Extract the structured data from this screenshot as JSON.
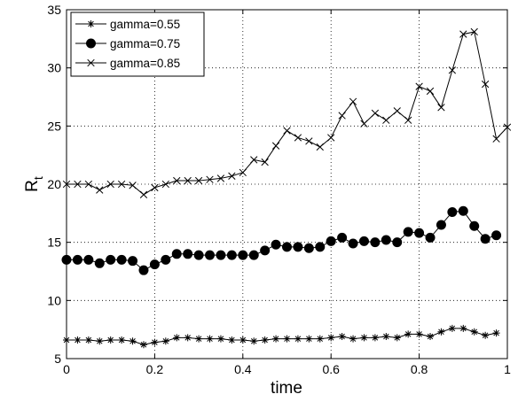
{
  "chart_data": {
    "type": "line",
    "title": "",
    "xlabel": "time",
    "ylabel": "R",
    "ylabel_subscript": "t",
    "xlim": [
      0,
      1
    ],
    "ylim": [
      5,
      35
    ],
    "xticks": [
      0,
      0.2,
      0.4,
      0.6,
      0.8,
      1
    ],
    "yticks": [
      5,
      10,
      15,
      20,
      25,
      30,
      35
    ],
    "xtick_labels": [
      "0",
      "0.2",
      "0.4",
      "0.6",
      "0.8",
      "1"
    ],
    "ytick_labels": [
      "5",
      "10",
      "15",
      "20",
      "25",
      "30",
      "35"
    ],
    "grid": true,
    "legend_position": "top-left",
    "x": [
      0,
      0.025,
      0.05,
      0.075,
      0.1,
      0.125,
      0.15,
      0.175,
      0.2,
      0.225,
      0.25,
      0.275,
      0.3,
      0.325,
      0.35,
      0.375,
      0.4,
      0.425,
      0.45,
      0.475,
      0.5,
      0.525,
      0.55,
      0.575,
      0.6,
      0.625,
      0.65,
      0.675,
      0.7,
      0.725,
      0.75,
      0.775,
      0.8,
      0.825,
      0.85,
      0.875,
      0.9,
      0.925,
      0.95,
      0.975
    ],
    "series": [
      {
        "name": "gamma=0.55",
        "marker": "asterisk",
        "values": [
          6.6,
          6.6,
          6.6,
          6.5,
          6.6,
          6.6,
          6.5,
          6.2,
          6.4,
          6.5,
          6.8,
          6.8,
          6.7,
          6.7,
          6.7,
          6.6,
          6.6,
          6.5,
          6.6,
          6.7,
          6.7,
          6.7,
          6.7,
          6.7,
          6.8,
          6.9,
          6.7,
          6.8,
          6.8,
          6.9,
          6.8,
          7.1,
          7.1,
          6.9,
          7.3,
          7.6,
          7.6,
          7.3,
          7.0,
          7.2
        ]
      },
      {
        "name": "gamma=0.75",
        "marker": "filled-circle",
        "values": [
          13.5,
          13.5,
          13.5,
          13.2,
          13.5,
          13.5,
          13.4,
          12.6,
          13.1,
          13.5,
          14.0,
          14.0,
          13.9,
          13.9,
          13.9,
          13.9,
          13.9,
          13.9,
          14.3,
          14.8,
          14.6,
          14.6,
          14.5,
          14.6,
          15.1,
          15.4,
          14.9,
          15.1,
          15.0,
          15.2,
          15.0,
          15.9,
          15.8,
          15.4,
          16.5,
          17.6,
          17.7,
          16.4,
          15.3,
          15.6
        ]
      },
      {
        "name": "gamma=0.85",
        "marker": "x",
        "values": [
          20.0,
          20.0,
          20.0,
          19.5,
          20.0,
          20.0,
          19.9,
          19.1,
          19.7,
          20.0,
          20.3,
          20.3,
          20.3,
          20.4,
          20.5,
          20.7,
          21.0,
          22.1,
          21.9,
          23.3,
          24.6,
          24.0,
          23.7,
          23.2,
          24.0,
          25.9,
          27.1,
          25.2,
          26.1,
          25.5,
          26.3,
          25.5,
          28.4,
          28.0,
          26.6,
          29.8,
          32.9,
          33.1,
          28.6,
          23.9
        ]
      }
    ]
  },
  "extra_last_point": {
    "series_index": 2,
    "x": 1.0,
    "y": 24.9
  }
}
